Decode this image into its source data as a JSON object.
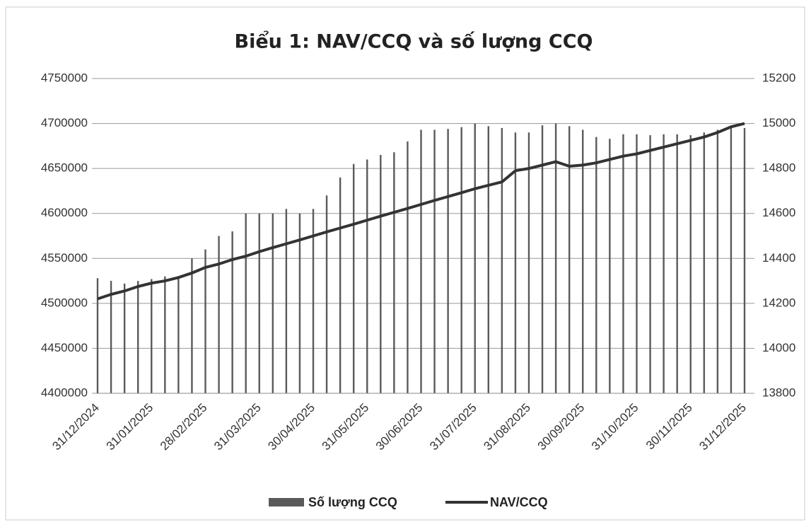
{
  "chart_data": {
    "type": "bar_line",
    "title": "Biểu 1: NAV/CCQ và số lượng CCQ",
    "categories": [
      "31/12/2024",
      null,
      null,
      null,
      "31/01/2025",
      null,
      null,
      null,
      "28/02/2025",
      null,
      null,
      null,
      "31/03/2025",
      null,
      null,
      null,
      "30/04/2025",
      null,
      null,
      null,
      "31/05/2025",
      null,
      null,
      null,
      "30/06/2025",
      null,
      null,
      null,
      "31/07/2025",
      null,
      null,
      null,
      "31/08/2025",
      null,
      null,
      null,
      "30/09/2025",
      null,
      null,
      null,
      "31/10/2025",
      null,
      null,
      null,
      "30/11/2025",
      null,
      null,
      null,
      "31/12/2025"
    ],
    "ylim": [
      4400000,
      4750000
    ],
    "yticks": [
      4400000,
      4450000,
      4500000,
      4550000,
      4600000,
      4650000,
      4700000,
      4750000
    ],
    "y2lim": [
      13800,
      15200
    ],
    "y2ticks": [
      13800,
      14000,
      14200,
      14400,
      14600,
      14800,
      15000,
      15200
    ],
    "grid": true,
    "legend": "bottom",
    "series": [
      {
        "name": "Số lượng CCQ",
        "type": "bar",
        "color": "#5a5a5a",
        "values": [
          4528000,
          4525000,
          4522000,
          4525000,
          4527000,
          4530000,
          4530000,
          4550000,
          4560000,
          4575000,
          4580000,
          4600000,
          4600000,
          4600000,
          4605000,
          4600000,
          4605000,
          4620000,
          4640000,
          4655000,
          4660000,
          4665000,
          4668000,
          4680000,
          4693000,
          4693000,
          4694000,
          4696000,
          4700000,
          4697000,
          4695000,
          4690000,
          4690000,
          4698000,
          4700000,
          4697000,
          4693000,
          4685000,
          4683000,
          4688000,
          4688000,
          4687000,
          4688000,
          4688000,
          4687000,
          4690000,
          4693000,
          4695000,
          4695000
        ]
      },
      {
        "name": "NAV/CCQ",
        "type": "line",
        "axis": "y2",
        "color": "#333333",
        "values": [
          14220,
          14240,
          14255,
          14275,
          14290,
          14300,
          14315,
          14335,
          14360,
          14375,
          14395,
          14410,
          14430,
          14448,
          14465,
          14482,
          14500,
          14518,
          14535,
          14552,
          14570,
          14588,
          14605,
          14622,
          14640,
          14658,
          14675,
          14692,
          14710,
          14725,
          14740,
          14790,
          14800,
          14815,
          14830,
          14810,
          14815,
          14825,
          14840,
          14855,
          14865,
          14880,
          14895,
          14910,
          14925,
          14940,
          14960,
          14985,
          15000
        ]
      }
    ]
  }
}
